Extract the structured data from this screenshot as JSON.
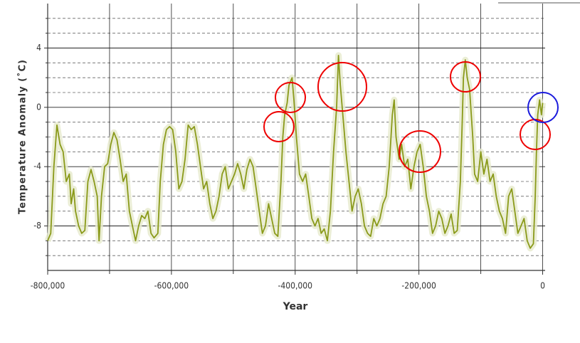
{
  "chart_data": {
    "type": "line",
    "ylabel": "Temperature Anomaly (˚C)",
    "xlabel": "Year",
    "x": [
      -800000,
      -795000,
      -790000,
      -785000,
      -780000,
      -775000,
      -770000,
      -765000,
      -762000,
      -758000,
      -755000,
      -750000,
      -745000,
      -740000,
      -735000,
      -730000,
      -725000,
      -720000,
      -717000,
      -713000,
      -708000,
      -703000,
      -698000,
      -693000,
      -688000,
      -683000,
      -678000,
      -673000,
      -668000,
      -663000,
      -658000,
      -653000,
      -648000,
      -643000,
      -638000,
      -633000,
      -628000,
      -622000,
      -618000,
      -613000,
      -608000,
      -603000,
      -598000,
      -593000,
      -588000,
      -583000,
      -578000,
      -573000,
      -568000,
      -563000,
      -558000,
      -553000,
      -548000,
      -543000,
      -538000,
      -533000,
      -528000,
      -523000,
      -518000,
      -513000,
      -508000,
      -503000,
      -498000,
      -493000,
      -488000,
      -483000,
      -478000,
      -473000,
      -468000,
      -463000,
      -458000,
      -453000,
      -448000,
      -443000,
      -438000,
      -433000,
      -428000,
      -423000,
      -420000,
      -417000,
      -413000,
      -410000,
      -405000,
      -402000,
      -398000,
      -393000,
      -388000,
      -383000,
      -378000,
      -373000,
      -368000,
      -363000,
      -358000,
      -353000,
      -348000,
      -343000,
      -338000,
      -333000,
      -330000,
      -327000,
      -322000,
      -318000,
      -313000,
      -308000,
      -303000,
      -298000,
      -293000,
      -288000,
      -283000,
      -278000,
      -273000,
      -268000,
      -263000,
      -258000,
      -253000,
      -248000,
      -243000,
      -240000,
      -237000,
      -232000,
      -228000,
      -223000,
      -218000,
      -213000,
      -208000,
      -203000,
      -198000,
      -193000,
      -188000,
      -183000,
      -178000,
      -173000,
      -168000,
      -163000,
      -158000,
      -153000,
      -148000,
      -143000,
      -138000,
      -133000,
      -130000,
      -128000,
      -125000,
      -122000,
      -118000,
      -113000,
      -110000,
      -105000,
      -100000,
      -95000,
      -90000,
      -85000,
      -80000,
      -75000,
      -70000,
      -65000,
      -60000,
      -55000,
      -50000,
      -45000,
      -40000,
      -35000,
      -30000,
      -25000,
      -20000,
      -15000,
      -12000,
      -10000,
      -8000,
      -5000,
      -2000,
      0
    ],
    "series": [
      {
        "color": "#8a9a1a",
        "values": [
          -9,
          -8.5,
          -4,
          -1.2,
          -2.5,
          -3,
          -5,
          -4.5,
          -6.5,
          -5.5,
          -7,
          -8,
          -8.5,
          -8.3,
          -5,
          -4.2,
          -5,
          -6,
          -9,
          -6,
          -4,
          -3.8,
          -2.5,
          -1.7,
          -2.2,
          -3.5,
          -5,
          -4.5,
          -7,
          -8,
          -9,
          -8,
          -7.3,
          -7.5,
          -7,
          -8.5,
          -8.8,
          -8.5,
          -5,
          -2.5,
          -1.5,
          -1.3,
          -1.5,
          -3,
          -5.5,
          -5,
          -3.5,
          -1.2,
          -1.5,
          -1.3,
          -2.5,
          -4,
          -5.5,
          -5,
          -6.5,
          -7.5,
          -7,
          -6,
          -4.5,
          -4,
          -5.5,
          -5,
          -4.5,
          -3.8,
          -4.5,
          -5.5,
          -4.2,
          -3.5,
          -4,
          -5.5,
          -7,
          -8.5,
          -8,
          -6.5,
          -7.5,
          -8.5,
          -8.7,
          -5,
          -2,
          -0.5,
          0.3,
          1.5,
          2,
          0.5,
          -2,
          -4.5,
          -5,
          -4.5,
          -6,
          -7.5,
          -8,
          -7.5,
          -8.5,
          -8.2,
          -9,
          -7,
          -3,
          0,
          3.5,
          1.5,
          -1,
          -3,
          -5,
          -7,
          -6,
          -5.5,
          -6.5,
          -8,
          -8.5,
          -8.7,
          -7.5,
          -8,
          -7.5,
          -6.5,
          -6,
          -4,
          -0.5,
          0.5,
          -2,
          -3.5,
          -2.5,
          -4,
          -3.5,
          -5.5,
          -4,
          -3,
          -2.5,
          -4,
          -6,
          -7,
          -8.5,
          -8,
          -7,
          -7.5,
          -8.5,
          -8,
          -7.2,
          -8.5,
          -8.3,
          -5,
          -1,
          2,
          3.2,
          2,
          1.2,
          -2,
          -4.5,
          -5,
          -3,
          -4.5,
          -3.5,
          -5,
          -4.5,
          -6,
          -7,
          -7.5,
          -8.5,
          -6,
          -5.5,
          -7,
          -8.5,
          -8,
          -7.5,
          -9,
          -9.5,
          -9.2,
          -6,
          -3,
          -0.5,
          0.5,
          -0.5,
          0.3
        ]
      }
    ],
    "xlim": [
      -800000,
      4000
    ],
    "ylim": [
      -11,
      7
    ],
    "xticks": [
      {
        "value": -800000,
        "label": "-800,000"
      },
      {
        "value": -600000,
        "label": "-600,000"
      },
      {
        "value": -400000,
        "label": "-400,000"
      },
      {
        "value": -200000,
        "label": "-200,000"
      },
      0
    ],
    "xminor_ticks": [
      -700000,
      -500000,
      -300000,
      -100000
    ],
    "yticks": [
      4,
      0,
      -4,
      -8
    ],
    "yminor_ticks": [
      6,
      5,
      3,
      2,
      1,
      -1,
      -2,
      -3,
      -5,
      -6,
      -7,
      -9,
      -10
    ],
    "grid": true
  }
}
